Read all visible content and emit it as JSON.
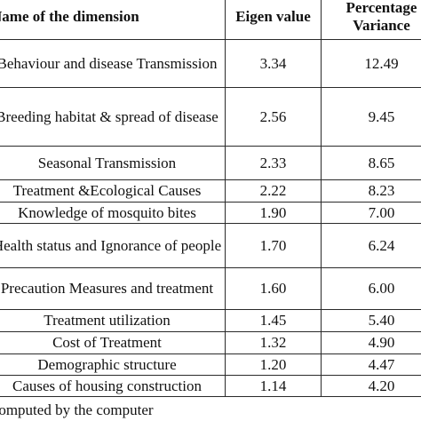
{
  "table": {
    "headers": {
      "name": "Name of the  dimension",
      "eigen": "Eigen value",
      "percentage": "Percentage Variance"
    },
    "rows": [
      {
        "name": "Behaviour and disease Transmission",
        "eigen": "3.34",
        "percentage": "12.49"
      },
      {
        "name": "Breeding habitat & spread of disease",
        "eigen": "2.56",
        "percentage": "9.45"
      },
      {
        "name": "Seasonal Transmission",
        "eigen": "2.33",
        "percentage": "8.65"
      },
      {
        "name": "Treatment &Ecological Causes",
        "eigen": "2.22",
        "percentage": "8.23"
      },
      {
        "name": "Knowledge of mosquito bites",
        "eigen": "1.90",
        "percentage": "7.00"
      },
      {
        "name": "Health status and Ignorance of people",
        "eigen": "1.70",
        "percentage": "6.24"
      },
      {
        "name": "Precaution Measures and treatment",
        "eigen": "1.60",
        "percentage": "6.00"
      },
      {
        "name": "Treatment utilization",
        "eigen": "1.45",
        "percentage": "5.40"
      },
      {
        "name": "Cost of Treatment",
        "eigen": "1.32",
        "percentage": "4.90"
      },
      {
        "name": "Demographic structure",
        "eigen": "1.20",
        "percentage": "4.47"
      },
      {
        "name": "Causes of housing construction",
        "eigen": "1.14",
        "percentage": "4.20"
      }
    ]
  },
  "footnote": "Computed by the computer"
}
